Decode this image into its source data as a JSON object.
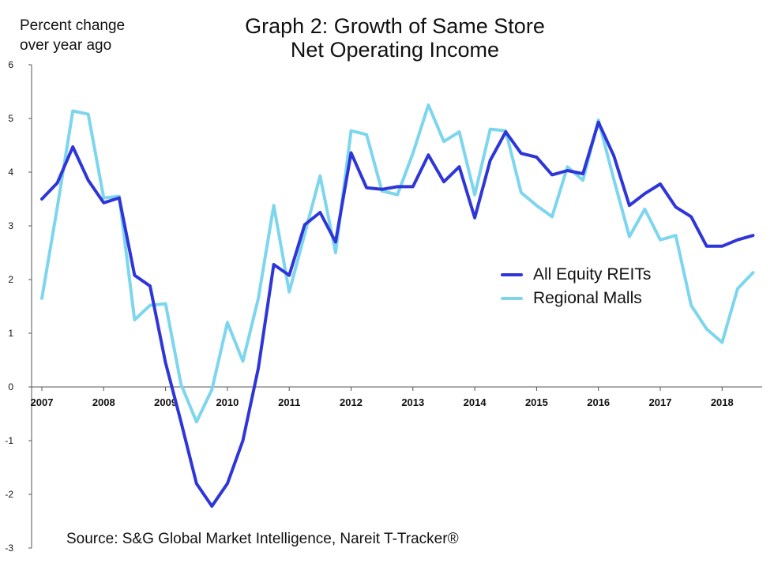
{
  "chart_data": {
    "type": "line",
    "title_lines": [
      "Graph 2: Growth of Same Store",
      "Net Operating Income"
    ],
    "ylabel_lines": [
      "Percent change",
      "over year ago"
    ],
    "xlabel": "",
    "ylim": [
      -3,
      6
    ],
    "xlim": [
      2007,
      2018.66
    ],
    "yticks": [
      "6",
      "5",
      "4",
      "3",
      "2",
      "1",
      "0",
      "-1",
      "-2",
      "-3"
    ],
    "xticks": [
      "2007",
      "2008",
      "2009",
      "2010",
      "2011",
      "2012",
      "2013",
      "2014",
      "2015",
      "2016",
      "2017",
      "2018"
    ],
    "grid": false,
    "legend_position": "right",
    "source": "Source: S&G Global Market Intelligence, Nareit T-Tracker®",
    "series": [
      {
        "name": "All Equity REITs",
        "color": "#2f36d8",
        "x": [
          2007.0,
          2007.25,
          2007.5,
          2007.75,
          2008.0,
          2008.25,
          2008.5,
          2008.75,
          2009.0,
          2009.25,
          2009.5,
          2009.75,
          2010.0,
          2010.25,
          2010.5,
          2010.75,
          2011.0,
          2011.25,
          2011.5,
          2011.75,
          2012.0,
          2012.25,
          2012.5,
          2012.75,
          2013.0,
          2013.25,
          2013.5,
          2013.75,
          2014.0,
          2014.25,
          2014.5,
          2014.75,
          2015.0,
          2015.25,
          2015.5,
          2015.75,
          2016.0,
          2016.25,
          2016.5,
          2016.75,
          2017.0,
          2017.25,
          2017.5,
          2017.75,
          2018.0,
          2018.25,
          2018.5
        ],
        "y": [
          3.5,
          3.8,
          4.47,
          3.85,
          3.43,
          3.52,
          2.08,
          1.88,
          0.45,
          -0.65,
          -1.8,
          -2.22,
          -1.8,
          -1.0,
          0.35,
          2.28,
          2.08,
          3.02,
          3.25,
          2.7,
          4.36,
          3.71,
          3.68,
          3.73,
          3.73,
          4.32,
          3.82,
          4.1,
          3.15,
          4.22,
          4.75,
          4.35,
          4.28,
          3.95,
          4.03,
          3.97,
          4.93,
          4.3,
          3.38,
          3.6,
          3.78,
          3.35,
          3.17,
          2.62,
          2.62,
          2.74,
          2.82
        ]
      },
      {
        "name": "Regional Malls",
        "color": "#7dd6ee",
        "x": [
          2007.0,
          2007.25,
          2007.5,
          2007.75,
          2008.0,
          2008.25,
          2008.5,
          2008.75,
          2009.0,
          2009.25,
          2009.5,
          2009.75,
          2010.0,
          2010.25,
          2010.5,
          2010.75,
          2011.0,
          2011.25,
          2011.5,
          2011.75,
          2012.0,
          2012.25,
          2012.5,
          2012.75,
          2013.0,
          2013.25,
          2013.5,
          2013.75,
          2014.0,
          2014.25,
          2014.5,
          2014.75,
          2015.0,
          2015.25,
          2015.5,
          2015.75,
          2016.0,
          2016.25,
          2016.5,
          2016.75,
          2017.0,
          2017.25,
          2017.5,
          2017.75,
          2018.0,
          2018.25,
          2018.5
        ],
        "y": [
          1.65,
          3.35,
          5.14,
          5.08,
          3.52,
          3.55,
          1.25,
          1.52,
          1.55,
          0.05,
          -0.65,
          -0.05,
          1.2,
          0.48,
          1.65,
          3.38,
          1.77,
          2.85,
          3.93,
          2.5,
          4.77,
          4.7,
          3.65,
          3.58,
          4.35,
          5.25,
          4.57,
          4.75,
          3.58,
          4.8,
          4.77,
          3.62,
          3.38,
          3.17,
          4.1,
          3.85,
          4.97,
          3.86,
          2.8,
          3.31,
          2.74,
          2.82,
          1.52,
          1.08,
          0.83,
          1.83,
          2.13
        ]
      }
    ]
  }
}
